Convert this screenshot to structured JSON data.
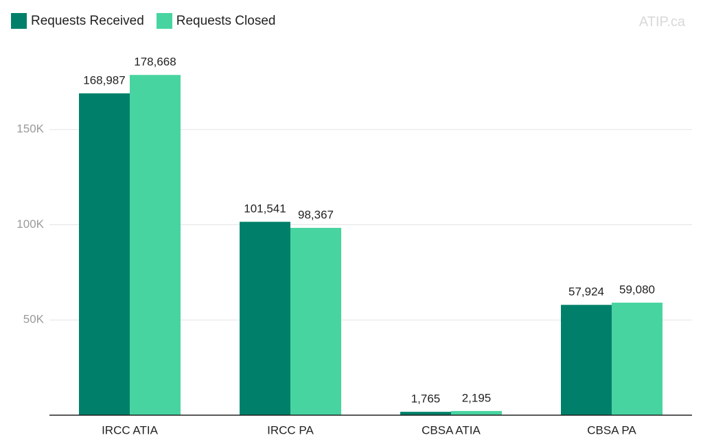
{
  "chart_data": {
    "type": "bar",
    "watermark": "ATIP.ca",
    "categories": [
      "IRCC ATIA",
      "IRCC PA",
      "CBSA ATIA",
      "CBSA PA"
    ],
    "series": [
      {
        "name": "Requests Received",
        "color": "#00806a",
        "values": [
          168987,
          101541,
          1765,
          57924
        ],
        "value_labels": [
          "168,987",
          "101,541",
          "1,765",
          "57,924"
        ]
      },
      {
        "name": "Requests Closed",
        "color": "#48d4a0",
        "values": [
          178668,
          98367,
          2195,
          59080
        ],
        "value_labels": [
          "178,668",
          "98,367",
          "2,195",
          "59,080"
        ]
      }
    ],
    "ylim": [
      0,
      200000
    ],
    "yticks": [
      {
        "value": 50000,
        "label": "50K"
      },
      {
        "value": 100000,
        "label": "100K"
      },
      {
        "value": 150000,
        "label": "150K"
      }
    ],
    "grid": true,
    "legend": "top-left"
  }
}
